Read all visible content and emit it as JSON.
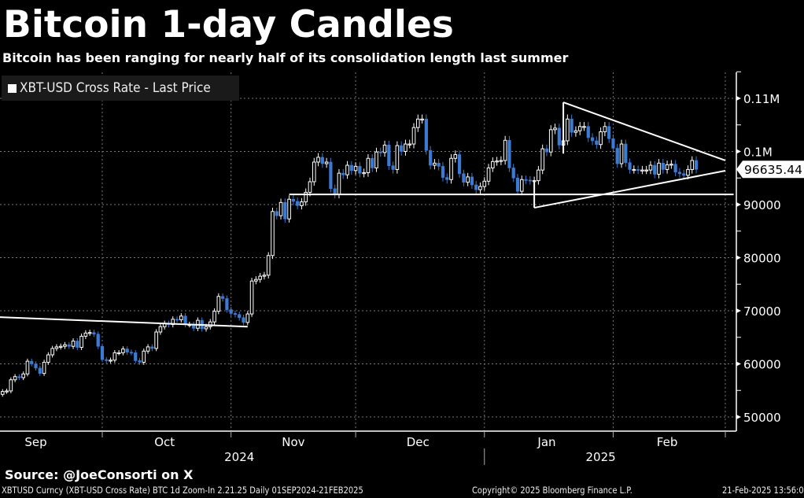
{
  "header": {
    "title": "Bitcoin 1-day Candles",
    "subtitle": "Bitcoin has been ranging for nearly half of its consolidation length last summer"
  },
  "legend": {
    "label": "XBT-USD Cross Rate - Last Price"
  },
  "footer": {
    "source": "Source: @JoeConsorti on X",
    "ticker": "XBTUSD Curncy (XBT-USD Cross Rate) BTC 1d Zoom-In 2.21.25  Daily 01SEP2024-21FEB2025",
    "copyright": "Copyright© 2025 Bloomberg Finance L.P.",
    "timestamp": "21-Feb-2025 13:56:08"
  },
  "chart_data": {
    "type": "candlestick",
    "title": "Bitcoin 1-day Candles",
    "series_name": "XBT-USD Cross Rate - Last Price",
    "start_date": "2024-09-07",
    "interval": "1d",
    "close": [
      54800,
      54900,
      57000,
      57600,
      57400,
      58100,
      60500,
      60000,
      59200,
      58200,
      60300,
      61700,
      62900,
      63200,
      63300,
      63600,
      63300,
      64300,
      63100,
      65200,
      65800,
      65900,
      65600,
      63300,
      60800,
      60600,
      60700,
      62100,
      62100,
      62800,
      62200,
      62100,
      60600,
      60300,
      62400,
      63200,
      62900,
      66000,
      67000,
      67600,
      67400,
      68400,
      68300,
      69000,
      67400,
      67400,
      66700,
      68200,
      66600,
      67000,
      67900,
      69900,
      72700,
      72300,
      70200,
      69500,
      69300,
      68700,
      67800,
      69400,
      75600,
      75900,
      76500,
      76700,
      80400,
      88700,
      87900,
      90400,
      87300,
      91000,
      90600,
      89800,
      90500,
      92300,
      94300,
      98000,
      98900,
      97700,
      98000,
      93000,
      91900,
      95900,
      95600,
      97400,
      96400,
      97200,
      95900,
      96000,
      98700,
      96900,
      99900,
      99800,
      101200,
      97300,
      96600,
      101100,
      100000,
      101400,
      101400,
      104500,
      106100,
      106100,
      100200,
      97400,
      97800,
      97200,
      95100,
      94700,
      98700,
      99400,
      95800,
      94200,
      95200,
      93700,
      92800,
      93400,
      94400,
      96900,
      98100,
      98200,
      98300,
      102100,
      96900,
      95000,
      92500,
      94700,
      94600,
      94500,
      94500,
      96500,
      100500,
      99900,
      104100,
      104400,
      101200,
      102000,
      106100,
      103600,
      103900,
      104700,
      104700,
      102600,
      102000,
      101300,
      103700,
      104700,
      102400,
      100600,
      97700,
      101400,
      97900,
      96600,
      96600,
      96500,
      96500,
      96500,
      97400,
      95700,
      97800,
      96600,
      97500,
      97600,
      96100,
      95800,
      95500,
      96600,
      98300,
      96635.44
    ],
    "last_price": "96635.44",
    "y_axis": {
      "side": "right",
      "ylim": [
        47500,
        117000
      ],
      "ticks": [
        50000,
        60000,
        70000,
        80000,
        90000,
        100000,
        110000
      ],
      "tick_labels": [
        "50000",
        "60000",
        "70000",
        "80000",
        "90000",
        "0.1M",
        "0.11M"
      ]
    },
    "x_axis": {
      "months": [
        {
          "label": "Sep",
          "date": "2024-09-15"
        },
        {
          "label": "Oct",
          "date": "2024-10-16"
        },
        {
          "label": "Nov",
          "date": "2024-11-16"
        },
        {
          "label": "Dec",
          "date": "2024-12-16"
        },
        {
          "label": "Jan",
          "date": "2025-01-16"
        },
        {
          "label": "Feb",
          "date": "2025-02-14"
        }
      ],
      "years": [
        {
          "label": "2024",
          "date": "2024-11-03"
        },
        {
          "label": "2025",
          "date": "2025-01-29"
        }
      ],
      "month_starts": [
        "2024-10-01",
        "2024-11-01",
        "2024-12-01",
        "2025-01-01",
        "2025-02-01",
        "2025-02-28"
      ]
    },
    "grid": true,
    "legend_position": "top-left",
    "colors": {
      "up": "#ffffff",
      "down": "#3b7bd4",
      "background": "#000000",
      "trendline": "#ffffff"
    },
    "trendlines": [
      {
        "from": [
          "2024-09-06",
          68800
        ],
        "to": [
          "2024-11-05",
          67000
        ]
      },
      {
        "from": [
          "2024-11-15",
          91900
        ],
        "to": [
          "2025-03-02",
          91900
        ]
      },
      {
        "from": [
          "2025-01-20",
          109250
        ],
        "to": [
          "2025-02-28",
          98300
        ]
      },
      {
        "from": [
          "2025-01-13",
          89400
        ],
        "to": [
          "2025-02-28",
          96370
        ]
      },
      {
        "from": [
          "2025-01-13",
          89400
        ],
        "to": [
          "2025-01-13",
          94400
        ]
      },
      {
        "from": [
          "2025-01-20",
          109250
        ],
        "to": [
          "2025-01-20",
          99600
        ]
      }
    ]
  }
}
